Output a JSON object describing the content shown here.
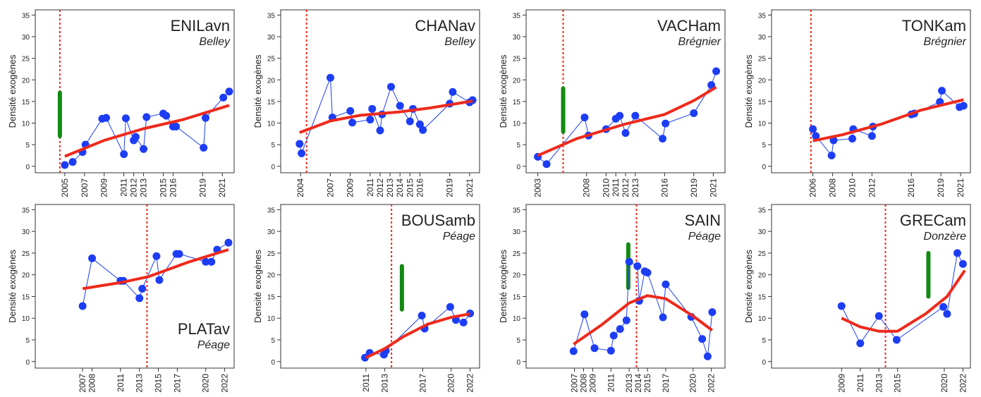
{
  "chart_data": [
    {
      "type": "line",
      "title": "ENILavn",
      "subtitle": "Belley",
      "y_label": "Densité exogènes",
      "label_corner": "top-right",
      "xlim": [
        2002,
        2022.2
      ],
      "xticks": [
        2005,
        2007,
        2009,
        2011,
        2012,
        2013,
        2015,
        2016,
        2019,
        2021
      ],
      "ylim": [
        -1.5,
        36.2
      ],
      "yticks": [
        0,
        5,
        10,
        15,
        20,
        25,
        30,
        35
      ],
      "series": [
        {
          "color": "#1d3df5",
          "x": [
            2005,
            2005.8,
            2006.8,
            2007.1,
            2008.8,
            2009.2,
            2011,
            2011.2,
            2012,
            2012.2,
            2013,
            2013.3,
            2015,
            2015.3,
            2016,
            2016.3,
            2019.1,
            2019.3,
            2021.1,
            2021.7
          ],
          "values": [
            0.3,
            1.0,
            3.3,
            5.0,
            11.0,
            11.2,
            2.8,
            11.1,
            6.0,
            6.8,
            4.0,
            11.4,
            12.2,
            11.7,
            9.2,
            9.2,
            4.3,
            11.2,
            15.9,
            17.3
          ]
        },
        {
          "color": "#ee2a1b",
          "x": [
            2005,
            2009,
            2013,
            2017,
            2021.7
          ],
          "values": [
            2.3,
            6.0,
            8.7,
            10.8,
            14.1
          ]
        }
      ],
      "vline": 2004.5,
      "vline_color": "#ee2a1b",
      "range": {
        "x": 2004.5,
        "low": 7,
        "high": 17,
        "color": "#148a14"
      }
    },
    {
      "type": "line",
      "title": "CHANav",
      "subtitle": "Belley",
      "y_label": "Densité exogènes",
      "label_corner": "top-right",
      "xlim": [
        2002,
        2022
      ],
      "xticks": [
        2004,
        2007,
        2009,
        2011,
        2012,
        2013,
        2014,
        2015,
        2016,
        2019,
        2021
      ],
      "ylim": [
        -1.5,
        36.2
      ],
      "yticks": [
        0,
        5,
        10,
        15,
        20,
        25,
        30,
        35
      ],
      "series": [
        {
          "color": "#1d3df5",
          "x": [
            2003.9,
            2004.1,
            2007,
            2007.2,
            2009,
            2009.2,
            2011,
            2011.2,
            2012,
            2012.2,
            2013.1,
            2014,
            2015,
            2015.3,
            2016,
            2016.3,
            2019,
            2019.3,
            2021,
            2021.3
          ],
          "values": [
            5.2,
            3.0,
            20.5,
            11.3,
            12.8,
            10.1,
            10.8,
            13.3,
            8.3,
            12.0,
            18.4,
            14.0,
            10.4,
            13.3,
            9.7,
            8.4,
            14.5,
            17.2,
            14.8,
            15.3
          ]
        },
        {
          "color": "#ee2a1b",
          "x": [
            2003.9,
            2007,
            2010,
            2014,
            2017,
            2021.3
          ],
          "values": [
            7.8,
            10.5,
            11.8,
            12.6,
            13.5,
            15.1
          ]
        }
      ],
      "vline": 2004.6,
      "vline_color": "#ee2a1b"
    },
    {
      "type": "line",
      "title": "VACHam",
      "subtitle": "Brégnier",
      "y_label": "Densité exogènes",
      "label_corner": "top-right",
      "xlim": [
        2001.8,
        2022.2
      ],
      "xticks": [
        2003,
        2008,
        2010,
        2011,
        2012,
        2013,
        2016,
        2019,
        2021
      ],
      "ylim": [
        -1.5,
        36.2
      ],
      "yticks": [
        0,
        5,
        10,
        15,
        20,
        25,
        30,
        35
      ],
      "series": [
        {
          "color": "#1d3df5",
          "x": [
            2003,
            2003.9,
            2007.8,
            2008.2,
            2010,
            2011,
            2011.4,
            2012,
            2013,
            2015.8,
            2016.1,
            2019,
            2020.8,
            2021.3
          ],
          "values": [
            2.2,
            0.5,
            11.3,
            7.1,
            8.6,
            11.0,
            11.7,
            7.7,
            11.7,
            6.4,
            9.9,
            12.3,
            18.8,
            22.0
          ]
        },
        {
          "color": "#ee2a1b",
          "x": [
            2003,
            2007,
            2012,
            2016,
            2019,
            2021.3
          ],
          "values": [
            2.5,
            6.4,
            9.8,
            12.0,
            15.2,
            18.3
          ]
        }
      ],
      "vline": 2005.6,
      "vline_color": "#ee2a1b",
      "range": {
        "x": 2005.6,
        "low": 8,
        "high": 18,
        "color": "#148a14"
      }
    },
    {
      "type": "line",
      "title": "TONKam",
      "subtitle": "Brégnier",
      "y_label": "Densité exogènes",
      "label_corner": "top-right",
      "xlim": [
        2001.8,
        2022
      ],
      "xticks": [
        2006,
        2008,
        2010,
        2012,
        2016,
        2019,
        2021
      ],
      "ylim": [
        -1.5,
        36.2
      ],
      "yticks": [
        0,
        5,
        10,
        15,
        20,
        25,
        30,
        35
      ],
      "series": [
        {
          "color": "#1d3df5",
          "x": [
            2006,
            2006.3,
            2007.9,
            2008.1,
            2010,
            2010.1,
            2012,
            2012.1,
            2016,
            2016.3,
            2018.9,
            2019.1,
            2020.9,
            2021.3
          ],
          "values": [
            8.6,
            7.0,
            2.5,
            6.0,
            6.4,
            8.6,
            7.0,
            9.2,
            12.0,
            12.2,
            14.9,
            17.5,
            13.7,
            14.0
          ]
        },
        {
          "color": "#ee2a1b",
          "x": [
            2006,
            2009,
            2013,
            2017,
            2021.3
          ],
          "values": [
            5.9,
            7.3,
            9.8,
            13.0,
            15.4
          ]
        }
      ],
      "vline": 2005.8,
      "vline_color": "#ee2a1b"
    },
    {
      "type": "line",
      "title": "PLATav",
      "subtitle": "Péage",
      "y_label": "Densité exogènes",
      "label_corner": "bottom-right",
      "xlim": [
        2002,
        2023
      ],
      "xticks": [
        2007,
        2008,
        2011,
        2013,
        2015,
        2017,
        2020,
        2022
      ],
      "ylim": [
        -1.5,
        36.2
      ],
      "yticks": [
        0,
        5,
        10,
        15,
        20,
        25,
        30,
        35
      ],
      "series": [
        {
          "color": "#1d3df5",
          "x": [
            2007,
            2008,
            2011,
            2011.3,
            2013,
            2013.3,
            2014.8,
            2015.1,
            2016.9,
            2017.2,
            2020,
            2020.6,
            2021.2,
            2022.4
          ],
          "values": [
            12.8,
            23.8,
            18.6,
            18.6,
            14.6,
            16.8,
            24.3,
            18.8,
            24.8,
            24.8,
            23.0,
            23.0,
            25.8,
            27.4
          ]
        },
        {
          "color": "#ee2a1b",
          "x": [
            2007,
            2011,
            2014,
            2018,
            2022.4
          ],
          "values": [
            16.8,
            18.2,
            19.6,
            22.8,
            25.8
          ]
        }
      ],
      "vline": 2013.8,
      "vline_color": "#ee2a1b"
    },
    {
      "type": "line",
      "title": "BOUSamb",
      "subtitle": "Péage",
      "y_label": "Densité exogènes",
      "label_corner": "top-right",
      "xlim": [
        2002,
        2023
      ],
      "xticks": [
        2011,
        2013,
        2017,
        2020,
        2022
      ],
      "ylim": [
        -1.5,
        36.2
      ],
      "yticks": [
        0,
        5,
        10,
        15,
        20,
        25,
        30,
        35
      ],
      "series": [
        {
          "color": "#1d3df5",
          "x": [
            2010.9,
            2011.4,
            2012.9,
            2013.1,
            2016.9,
            2017.2,
            2019.9,
            2020.5,
            2021.3,
            2022
          ],
          "values": [
            0.9,
            2.0,
            1.6,
            2.5,
            10.6,
            7.6,
            12.6,
            9.6,
            9.0,
            11.1
          ]
        },
        {
          "color": "#ee2a1b",
          "x": [
            2011,
            2013,
            2015,
            2017.5,
            2020,
            2022
          ],
          "values": [
            0.9,
            3.0,
            5.8,
            8.6,
            10.2,
            11.0
          ]
        }
      ],
      "vline": 2013.7,
      "vline_color": "#ee2a1b",
      "range": {
        "x": 2014.8,
        "low": 12,
        "high": 22,
        "color": "#148a14"
      }
    },
    {
      "type": "line",
      "title": "SAIN",
      "subtitle": "Péage",
      "y_label": "Densité exogènes",
      "label_corner": "top-right",
      "xlim": [
        2001.7,
        2023.5
      ],
      "xticks": [
        2007,
        2008,
        2009,
        2011,
        2013,
        2014,
        2015,
        2017,
        2020,
        2022
      ],
      "ylim": [
        -1.5,
        36.2
      ],
      "yticks": [
        0,
        5,
        10,
        15,
        20,
        25,
        30,
        35
      ],
      "series": [
        {
          "color": "#1d3df5",
          "x": [
            2006.9,
            2008.1,
            2009.2,
            2011,
            2011.3,
            2012,
            2012.7,
            2013,
            2013.9,
            2014.1,
            2014.7,
            2015,
            2016.7,
            2017,
            2019.8,
            2021,
            2021.6,
            2022.1
          ],
          "values": [
            2.4,
            10.9,
            3.1,
            2.5,
            6.0,
            7.5,
            9.5,
            23.0,
            22.0,
            14.0,
            20.8,
            20.5,
            10.2,
            17.8,
            10.3,
            5.2,
            1.2,
            11.4
          ]
        },
        {
          "color": "#ee2a1b",
          "x": [
            2006.9,
            2010,
            2013,
            2015,
            2017,
            2020,
            2022.1
          ],
          "values": [
            4.0,
            8.5,
            13.5,
            15.2,
            14.5,
            10.5,
            7.2
          ]
        }
      ],
      "vline": 2013.8,
      "vline_color": "#ee2a1b",
      "range": {
        "x": 2012.9,
        "low": 17,
        "high": 27,
        "color": "#148a14"
      }
    },
    {
      "type": "line",
      "title": "GRECam",
      "subtitle": "Donzère",
      "y_label": "Densité exogènes",
      "label_corner": "top-right",
      "xlim": [
        2001.5,
        2022.8
      ],
      "xticks": [
        2009,
        2011,
        2013,
        2015,
        2020,
        2022
      ],
      "ylim": [
        -1.5,
        36.2
      ],
      "yticks": [
        0,
        5,
        10,
        15,
        20,
        25,
        30,
        35
      ],
      "series": [
        {
          "color": "#1d3df5",
          "x": [
            2009,
            2011,
            2013,
            2014.9,
            2019.9,
            2020.3,
            2021.4,
            2022
          ],
          "values": [
            12.8,
            4.2,
            10.5,
            5.0,
            12.6,
            11.0,
            25.0,
            22.5
          ]
        },
        {
          "color": "#ee2a1b",
          "x": [
            2009,
            2011,
            2013,
            2015,
            2018,
            2020.3,
            2022.2
          ],
          "values": [
            10.0,
            8.0,
            7.0,
            7.0,
            11.0,
            15.0,
            21.0
          ]
        }
      ],
      "vline": 2013.7,
      "vline_color": "#ee2a1b",
      "range": {
        "x": 2018.3,
        "low": 15,
        "high": 25,
        "color": "#148a14"
      }
    }
  ]
}
